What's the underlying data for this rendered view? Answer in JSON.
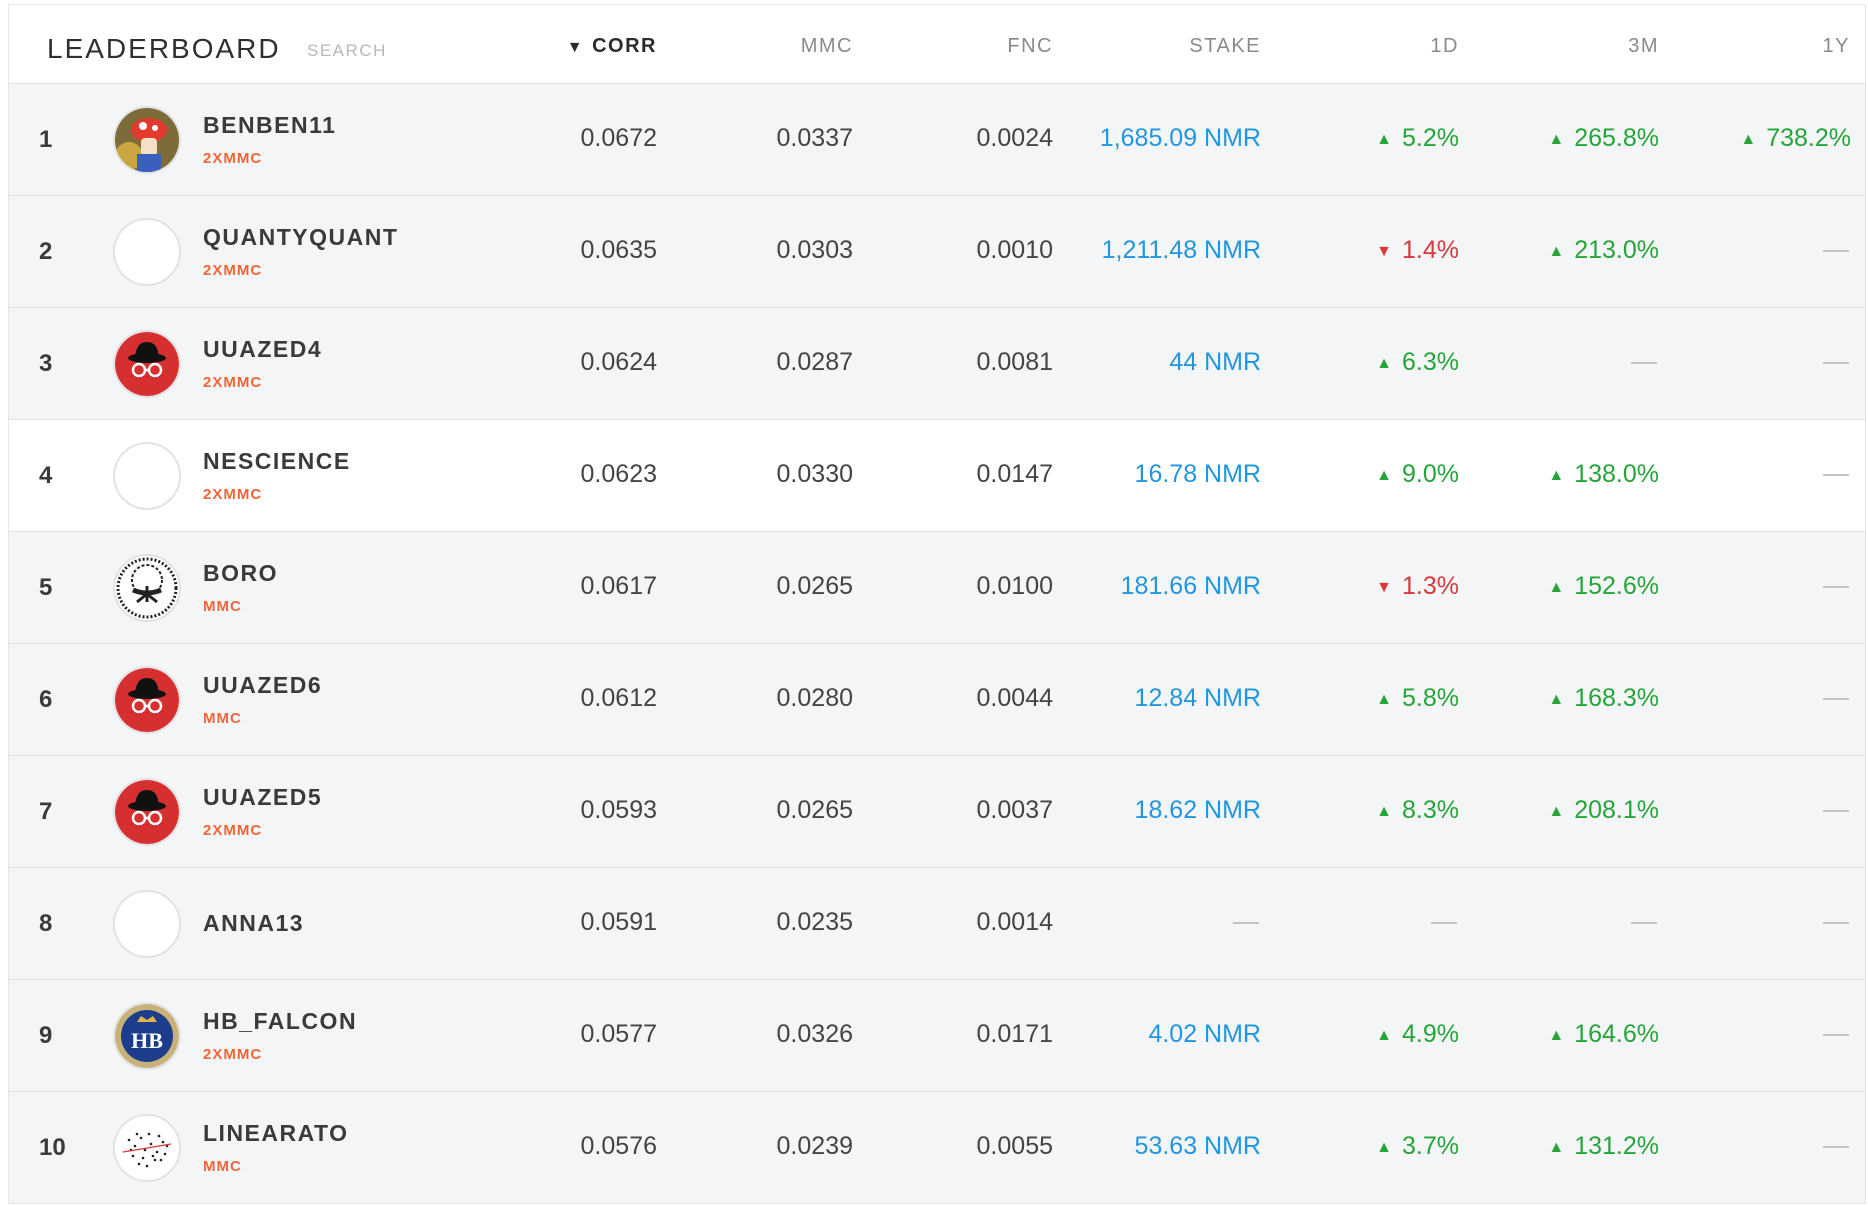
{
  "header": {
    "title": "LEADERBOARD",
    "search_placeholder": "SEARCH",
    "columns": {
      "corr": "CORR",
      "mmc": "MMC",
      "fnc": "FNC",
      "stake": "STAKE",
      "d1": "1D",
      "m3": "3M",
      "y1": "1Y"
    },
    "sort_indicator": "▼"
  },
  "colors": {
    "stake": "#2196e0",
    "up": "#23a53a",
    "down": "#d9383a",
    "badge": "#f0663a"
  },
  "icons": {
    "up": "triangle-up-icon",
    "down": "triangle-down-icon",
    "empty": "dash-icon"
  },
  "rows": [
    {
      "rank": "1",
      "username": "BENBEN11",
      "badge": "2XMMC",
      "avatar": "mushroom-avatar",
      "corr": "0.0672",
      "mmc": "0.0337",
      "fnc": "0.0024",
      "stake": "1,685.09 NMR",
      "d1": {
        "dir": "up",
        "value": "5.2%"
      },
      "m3": {
        "dir": "up",
        "value": "265.8%"
      },
      "y1": {
        "dir": "up",
        "value": "738.2%"
      }
    },
    {
      "rank": "2",
      "username": "QUANTYQUANT",
      "badge": "2XMMC",
      "avatar": "blank-avatar",
      "corr": "0.0635",
      "mmc": "0.0303",
      "fnc": "0.0010",
      "stake": "1,211.48 NMR",
      "d1": {
        "dir": "down",
        "value": "1.4%"
      },
      "m3": {
        "dir": "up",
        "value": "213.0%"
      },
      "y1": null
    },
    {
      "rank": "3",
      "username": "UUAZED4",
      "badge": "2XMMC",
      "avatar": "hat-glasses-avatar",
      "corr": "0.0624",
      "mmc": "0.0287",
      "fnc": "0.0081",
      "stake": "44 NMR",
      "d1": {
        "dir": "up",
        "value": "6.3%"
      },
      "m3": null,
      "y1": null
    },
    {
      "rank": "4",
      "username": "NESCIENCE",
      "badge": "2XMMC",
      "avatar": "blank-avatar",
      "corr": "0.0623",
      "mmc": "0.0330",
      "fnc": "0.0147",
      "stake": "16.78 NMR",
      "d1": {
        "dir": "up",
        "value": "9.0%"
      },
      "m3": {
        "dir": "up",
        "value": "138.0%"
      },
      "y1": null
    },
    {
      "rank": "5",
      "username": "BORO",
      "badge": "MMC",
      "avatar": "tree-avatar",
      "corr": "0.0617",
      "mmc": "0.0265",
      "fnc": "0.0100",
      "stake": "181.66 NMR",
      "d1": {
        "dir": "down",
        "value": "1.3%"
      },
      "m3": {
        "dir": "up",
        "value": "152.6%"
      },
      "y1": null
    },
    {
      "rank": "6",
      "username": "UUAZED6",
      "badge": "MMC",
      "avatar": "hat-glasses-avatar",
      "corr": "0.0612",
      "mmc": "0.0280",
      "fnc": "0.0044",
      "stake": "12.84 NMR",
      "d1": {
        "dir": "up",
        "value": "5.8%"
      },
      "m3": {
        "dir": "up",
        "value": "168.3%"
      },
      "y1": null
    },
    {
      "rank": "7",
      "username": "UUAZED5",
      "badge": "2XMMC",
      "avatar": "hat-glasses-avatar",
      "corr": "0.0593",
      "mmc": "0.0265",
      "fnc": "0.0037",
      "stake": "18.62 NMR",
      "d1": {
        "dir": "up",
        "value": "8.3%"
      },
      "m3": {
        "dir": "up",
        "value": "208.1%"
      },
      "y1": null
    },
    {
      "rank": "8",
      "username": "ANNA13",
      "badge": "",
      "avatar": "blank-avatar",
      "corr": "0.0591",
      "mmc": "0.0235",
      "fnc": "0.0014",
      "stake": null,
      "d1": null,
      "m3": null,
      "y1": null
    },
    {
      "rank": "9",
      "username": "HB_FALCON",
      "badge": "2XMMC",
      "avatar": "hb-crest-avatar",
      "hb_text": "HB",
      "corr": "0.0577",
      "mmc": "0.0326",
      "fnc": "0.0171",
      "stake": "4.02 NMR",
      "d1": {
        "dir": "up",
        "value": "4.9%"
      },
      "m3": {
        "dir": "up",
        "value": "164.6%"
      },
      "y1": null
    },
    {
      "rank": "10",
      "username": "LINEARATO",
      "badge": "MMC",
      "avatar": "scatter-avatar",
      "corr": "0.0576",
      "mmc": "0.0239",
      "fnc": "0.0055",
      "stake": "53.63 NMR",
      "d1": {
        "dir": "up",
        "value": "3.7%"
      },
      "m3": {
        "dir": "up",
        "value": "131.2%"
      },
      "y1": null
    }
  ]
}
